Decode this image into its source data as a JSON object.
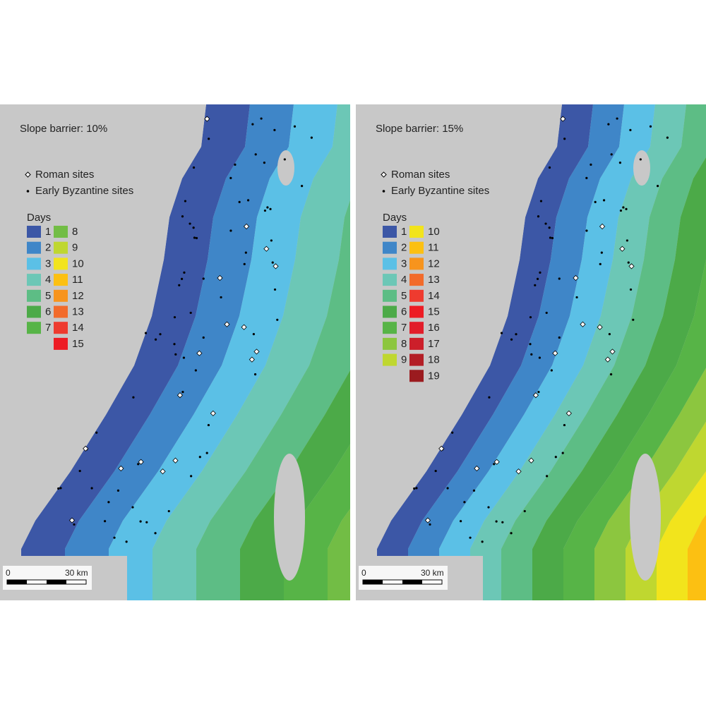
{
  "panels": [
    {
      "title": "Slope barrier: 10%",
      "legend": {
        "roman": "Roman sites",
        "byzantine": "Early Byzantine sites",
        "days_title": "Days",
        "items": [
          {
            "label": "1",
            "color": "#3c57a6"
          },
          {
            "label": "2",
            "color": "#3f86c8"
          },
          {
            "label": "3",
            "color": "#5bc0e6"
          },
          {
            "label": "4",
            "color": "#6cc7b6"
          },
          {
            "label": "5",
            "color": "#5dbd85"
          },
          {
            "label": "6",
            "color": "#4caa48"
          },
          {
            "label": "7",
            "color": "#57b447"
          },
          {
            "label": "8",
            "color": "#72bd45"
          },
          {
            "label": "9",
            "color": "#bfd730"
          },
          {
            "label": "10",
            "color": "#f2e41c"
          },
          {
            "label": "11",
            "color": "#fcc012"
          },
          {
            "label": "12",
            "color": "#f7941d"
          },
          {
            "label": "13",
            "color": "#f26b2b"
          },
          {
            "label": "14",
            "color": "#ee3b2f"
          },
          {
            "label": "15",
            "color": "#ed1c24"
          }
        ]
      },
      "scale": {
        "zero": "0",
        "label": "30 km"
      }
    },
    {
      "title": "Slope barrier: 15%",
      "legend": {
        "roman": "Roman sites",
        "byzantine": "Early Byzantine sites",
        "days_title": "Days",
        "items": [
          {
            "label": "1",
            "color": "#3c57a6"
          },
          {
            "label": "2",
            "color": "#3f86c8"
          },
          {
            "label": "3",
            "color": "#5bc0e6"
          },
          {
            "label": "4",
            "color": "#6cc7b6"
          },
          {
            "label": "5",
            "color": "#5dbd85"
          },
          {
            "label": "6",
            "color": "#4caa48"
          },
          {
            "label": "7",
            "color": "#57b447"
          },
          {
            "label": "8",
            "color": "#8cc63f"
          },
          {
            "label": "9",
            "color": "#bfd730"
          },
          {
            "label": "10",
            "color": "#f2e41c"
          },
          {
            "label": "11",
            "color": "#fcc012"
          },
          {
            "label": "12",
            "color": "#f7941d"
          },
          {
            "label": "13",
            "color": "#f26b2b"
          },
          {
            "label": "14",
            "color": "#ee3b2f"
          },
          {
            "label": "15",
            "color": "#ed1c24"
          },
          {
            "label": "16",
            "color": "#e21d2a"
          },
          {
            "label": "17",
            "color": "#cc1f2a"
          },
          {
            "label": "18",
            "color": "#b31e26"
          },
          {
            "label": "19",
            "color": "#9b1b1f"
          }
        ]
      },
      "scale": {
        "zero": "0",
        "label": "30 km"
      }
    }
  ]
}
